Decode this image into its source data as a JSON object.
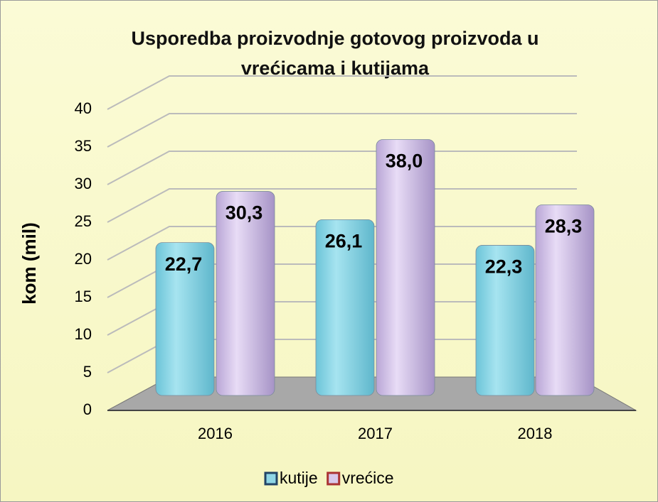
{
  "chart_data": {
    "type": "bar3d",
    "title": "Usporedba proizvodnje  gotovog proizvoda u vrećicama i kutijama",
    "y_label": "kom (mil)",
    "categories": [
      "2016",
      "2017",
      "2018"
    ],
    "series": [
      {
        "name": "kutije",
        "color": "#8fd6e6",
        "values": [
          22.7,
          26.1,
          22.3
        ],
        "value_labels": [
          "22,7",
          "26,1",
          "22,3"
        ]
      },
      {
        "name": "vrećice",
        "color": "#d9c9ec",
        "values": [
          30.3,
          38.0,
          28.3
        ],
        "value_labels": [
          "30,3",
          "38,0",
          "28,3"
        ]
      }
    ],
    "ylim": [
      0,
      40
    ],
    "yticks": [
      0,
      5,
      10,
      15,
      20,
      25,
      30,
      35,
      40
    ],
    "grid": true,
    "legend": "bottom"
  }
}
